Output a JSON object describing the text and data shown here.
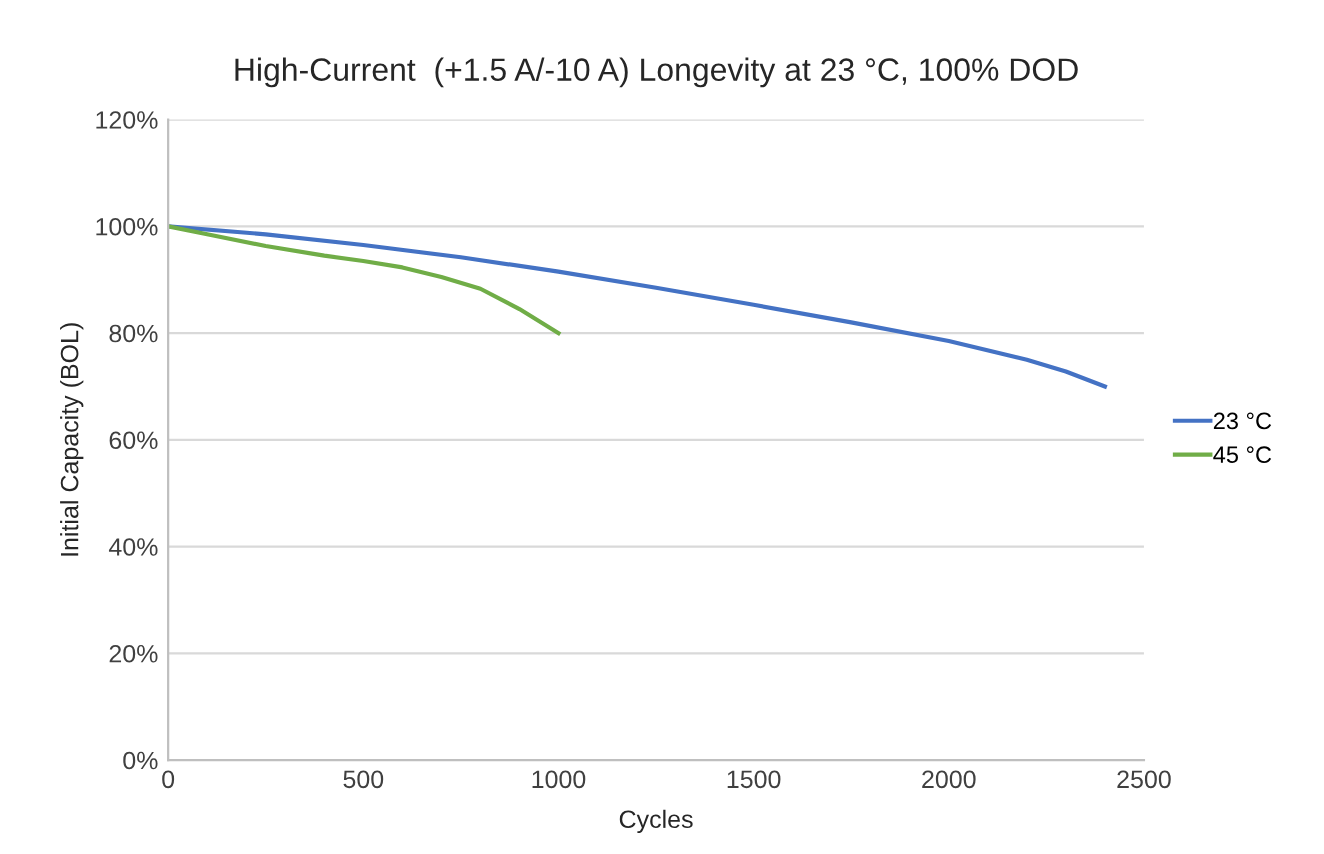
{
  "chart_data": {
    "type": "line",
    "title": "High-Current  (+1.5 A/-10 A) Longevity at 23 °C, 100% DOD",
    "xlabel": "Cycles",
    "ylabel": "Initial Capacity (BOL)",
    "series": [
      {
        "name": "23 °C",
        "color": "#4472c4",
        "x": [
          0,
          250,
          500,
          750,
          1000,
          1250,
          1500,
          1750,
          2000,
          2200,
          2300,
          2400
        ],
        "values": [
          100,
          98.5,
          96.5,
          94.2,
          91.5,
          88.5,
          85.3,
          82.0,
          78.5,
          75,
          72.8,
          70
        ]
      },
      {
        "name": "45 °C",
        "color": "#70ad47",
        "x": [
          0,
          100,
          250,
          400,
          500,
          600,
          700,
          800,
          900,
          1000
        ],
        "values": [
          100,
          98.5,
          96.3,
          94.5,
          93.5,
          92.3,
          90.5,
          88.3,
          84.5,
          80
        ]
      }
    ],
    "xlim": [
      0,
      2500
    ],
    "xticks": [
      0,
      500,
      1000,
      1500,
      2000,
      2500
    ],
    "ylim": [
      0,
      120
    ],
    "yticks": [
      {
        "value": 0,
        "label": "0%"
      },
      {
        "value": 20,
        "label": "20%"
      },
      {
        "value": 40,
        "label": "40%"
      },
      {
        "value": 60,
        "label": "60%"
      },
      {
        "value": 80,
        "label": "80%"
      },
      {
        "value": 100,
        "label": "100%"
      },
      {
        "value": 120,
        "label": "120%"
      }
    ],
    "grid": "y",
    "legend": "right",
    "marker": "none",
    "line_style": "solid"
  }
}
